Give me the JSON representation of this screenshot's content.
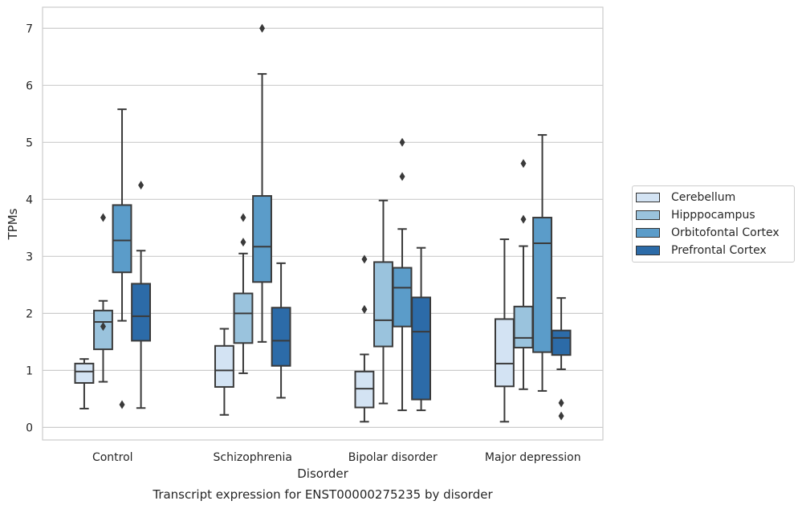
{
  "chart_data": {
    "type": "box",
    "title": "",
    "xlabel": "Disorder",
    "ylabel": "TPMs",
    "caption": "Transcript expression for ENST00000275235 by disorder",
    "categories": [
      "Control",
      "Schizophrenia",
      "Bipolar disorder",
      "Major depression"
    ],
    "ylim": [
      -0.22,
      7.37
    ],
    "yticks": [
      "0",
      "1",
      "2",
      "3",
      "4",
      "5",
      "6",
      "7"
    ],
    "grid": "horizontal",
    "legend_position": "right",
    "series": [
      {
        "name": "Cerebellum",
        "color": "#d3e3f3",
        "boxes": [
          {
            "whisker_low": 0.33,
            "q1": 0.78,
            "median": 0.98,
            "q3": 1.12,
            "whisker_high": 1.2,
            "outliers": []
          },
          {
            "whisker_low": 0.22,
            "q1": 0.71,
            "median": 1.0,
            "q3": 1.43,
            "whisker_high": 1.73,
            "outliers": []
          },
          {
            "whisker_low": 0.1,
            "q1": 0.35,
            "median": 0.68,
            "q3": 0.98,
            "whisker_high": 1.28,
            "outliers": [
              2.07,
              2.95
            ]
          },
          {
            "whisker_low": 0.1,
            "q1": 0.72,
            "median": 1.12,
            "q3": 1.9,
            "whisker_high": 3.3,
            "outliers": []
          }
        ]
      },
      {
        "name": "Hipppocampus",
        "color": "#9ac3dd",
        "boxes": [
          {
            "whisker_low": 0.8,
            "q1": 1.37,
            "median": 1.85,
            "q3": 2.05,
            "whisker_high": 2.22,
            "outliers": [
              1.77,
              3.68
            ]
          },
          {
            "whisker_low": 0.95,
            "q1": 1.48,
            "median": 2.0,
            "q3": 2.35,
            "whisker_high": 3.05,
            "outliers": [
              3.25,
              3.68
            ]
          },
          {
            "whisker_low": 0.42,
            "q1": 1.42,
            "median": 1.88,
            "q3": 2.9,
            "whisker_high": 3.98,
            "outliers": []
          },
          {
            "whisker_low": 0.67,
            "q1": 1.4,
            "median": 1.57,
            "q3": 2.12,
            "whisker_high": 3.18,
            "outliers": [
              3.65,
              4.63
            ]
          }
        ]
      },
      {
        "name": "Orbitofontal Cortex",
        "color": "#5b9cc9",
        "boxes": [
          {
            "whisker_low": 1.87,
            "q1": 2.72,
            "median": 3.28,
            "q3": 3.9,
            "whisker_high": 5.58,
            "outliers": [
              0.4
            ]
          },
          {
            "whisker_low": 1.5,
            "q1": 2.55,
            "median": 3.17,
            "q3": 4.06,
            "whisker_high": 6.2,
            "outliers": [
              7.0
            ]
          },
          {
            "whisker_low": 0.3,
            "q1": 1.77,
            "median": 2.45,
            "q3": 2.8,
            "whisker_high": 3.48,
            "outliers": [
              4.4,
              5.0
            ]
          },
          {
            "whisker_low": 0.64,
            "q1": 1.32,
            "median": 3.23,
            "q3": 3.68,
            "whisker_high": 5.13,
            "outliers": []
          }
        ]
      },
      {
        "name": "Prefrontal Cortex",
        "color": "#2c6ba8",
        "boxes": [
          {
            "whisker_low": 0.34,
            "q1": 1.52,
            "median": 1.95,
            "q3": 2.52,
            "whisker_high": 3.1,
            "outliers": [
              4.25
            ]
          },
          {
            "whisker_low": 0.52,
            "q1": 1.08,
            "median": 1.52,
            "q3": 2.1,
            "whisker_high": 2.88,
            "outliers": []
          },
          {
            "whisker_low": 0.3,
            "q1": 0.49,
            "median": 1.68,
            "q3": 2.28,
            "whisker_high": 3.15,
            "outliers": []
          },
          {
            "whisker_low": 1.02,
            "q1": 1.27,
            "median": 1.57,
            "q3": 1.7,
            "whisker_high": 2.27,
            "outliers": [
              0.2,
              0.43
            ]
          }
        ]
      }
    ]
  }
}
